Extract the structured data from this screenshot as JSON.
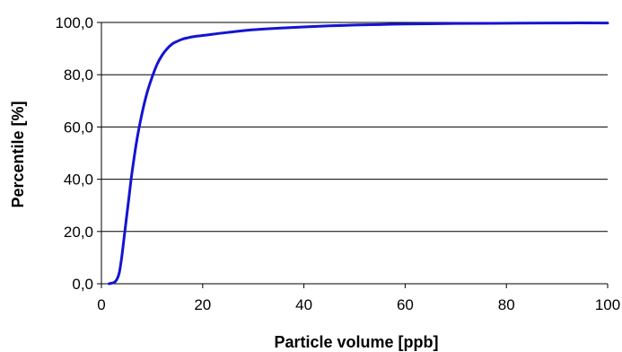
{
  "chart_data": {
    "type": "line",
    "title": "",
    "xlabel": "Particle volume [ppb]",
    "ylabel": "Percentile [%]",
    "xlim": [
      0,
      100
    ],
    "ylim": [
      0,
      100
    ],
    "x_ticks": [
      "0",
      "20",
      "40",
      "60",
      "80",
      "100"
    ],
    "y_ticks": [
      "0,0",
      "20,0",
      "40,0",
      "60,0",
      "80,0",
      "100,0"
    ],
    "grid": "horizontal",
    "legend": "none",
    "series": [
      {
        "color": "#1414d2",
        "x": [
          1.5,
          2.5,
          3,
          3.5,
          4,
          4.5,
          5,
          5.5,
          6,
          7,
          8,
          9,
          10,
          11,
          12,
          13,
          14,
          15,
          16,
          17,
          18,
          20,
          22,
          25,
          30,
          35,
          40,
          45,
          50,
          55,
          60,
          70,
          80,
          90,
          100
        ],
        "y": [
          0,
          0.5,
          1.5,
          4,
          10,
          18,
          26,
          34,
          42,
          55,
          65,
          73,
          79,
          84,
          87.5,
          90,
          91.8,
          92.8,
          93.6,
          94.1,
          94.5,
          95,
          95.5,
          96.2,
          97.2,
          97.8,
          98.3,
          98.7,
          99,
          99.2,
          99.4,
          99.6,
          99.7,
          99.8,
          99.8
        ]
      }
    ]
  }
}
